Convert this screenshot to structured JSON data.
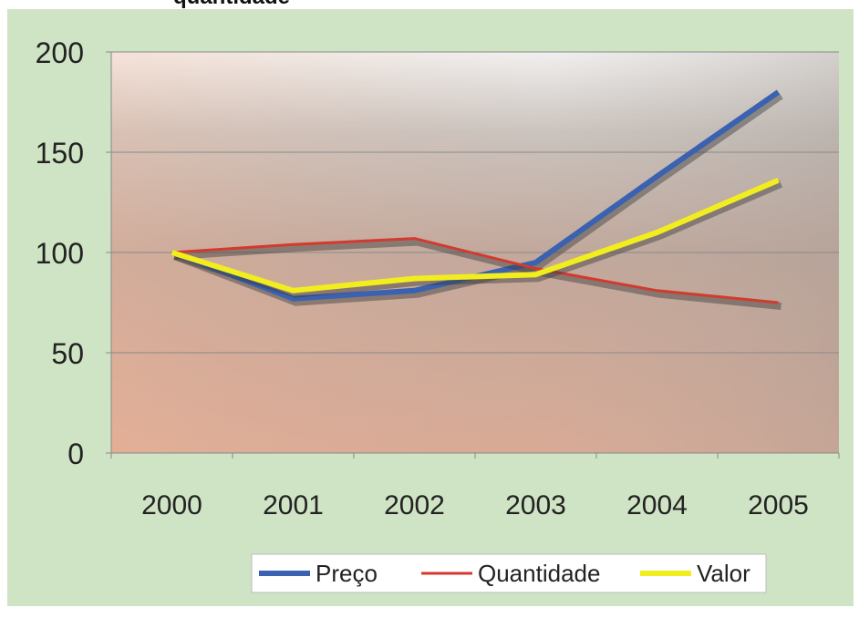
{
  "chart_data": {
    "type": "line",
    "title": "quantidade",
    "categories": [
      "2000",
      "2001",
      "2002",
      "2003",
      "2004",
      "2005"
    ],
    "series": [
      {
        "name": "Preço",
        "color": "#3a62b0",
        "values": [
          100,
          77,
          81,
          95,
          138,
          180
        ]
      },
      {
        "name": "Quantidade",
        "color": "#d23a2e",
        "values": [
          100,
          104,
          107,
          92,
          81,
          75
        ]
      },
      {
        "name": "Valor",
        "color": "#f2ee1e",
        "values": [
          100,
          81,
          87,
          89,
          110,
          136
        ]
      }
    ],
    "ylim": [
      0,
      200
    ],
    "yticks": [
      0,
      50,
      100,
      150,
      200
    ],
    "grid": true,
    "legend": "bottom"
  }
}
